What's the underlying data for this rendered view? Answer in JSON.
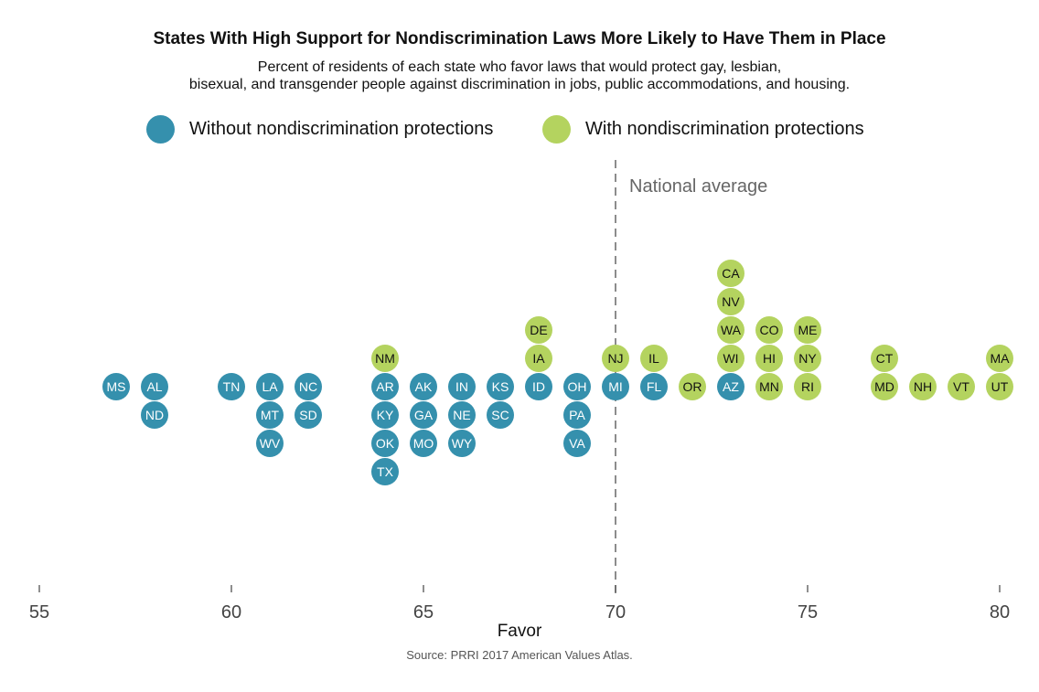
{
  "chart_data": {
    "type": "scatter",
    "title": "States With High Support for Nondiscrimination Laws More Likely to Have Them in Place",
    "subtitle": [
      "Percent of residents of each state who favor laws that would protect gay, lesbian,",
      "bisexual, and transgender people against discrimination in jobs, public accommodations, and housing."
    ],
    "xlabel": "Favor",
    "xlim": [
      55,
      80
    ],
    "xticks": [
      55,
      60,
      65,
      70,
      75,
      80
    ],
    "grid": false,
    "legend_position": "top-center",
    "reference_line": {
      "x": 70,
      "label": "National average"
    },
    "series": [
      {
        "name": "Without nondiscrimination protections",
        "color": "#3590ad",
        "points": [
          {
            "state": "MS",
            "x": 57
          },
          {
            "state": "AL",
            "x": 58
          },
          {
            "state": "ND",
            "x": 58
          },
          {
            "state": "TN",
            "x": 60
          },
          {
            "state": "LA",
            "x": 61
          },
          {
            "state": "MT",
            "x": 61
          },
          {
            "state": "WV",
            "x": 61
          },
          {
            "state": "NC",
            "x": 62
          },
          {
            "state": "SD",
            "x": 62
          },
          {
            "state": "AR",
            "x": 64
          },
          {
            "state": "KY",
            "x": 64
          },
          {
            "state": "OK",
            "x": 64
          },
          {
            "state": "TX",
            "x": 64
          },
          {
            "state": "AK",
            "x": 65
          },
          {
            "state": "GA",
            "x": 65
          },
          {
            "state": "MO",
            "x": 65
          },
          {
            "state": "IN",
            "x": 66
          },
          {
            "state": "NE",
            "x": 66
          },
          {
            "state": "WY",
            "x": 66
          },
          {
            "state": "KS",
            "x": 67
          },
          {
            "state": "SC",
            "x": 67
          },
          {
            "state": "ID",
            "x": 68
          },
          {
            "state": "OH",
            "x": 69
          },
          {
            "state": "PA",
            "x": 69
          },
          {
            "state": "VA",
            "x": 69
          },
          {
            "state": "MI",
            "x": 70
          },
          {
            "state": "FL",
            "x": 71
          },
          {
            "state": "AZ",
            "x": 73
          }
        ]
      },
      {
        "name": "With nondiscrimination protections",
        "color": "#b4d35f",
        "points": [
          {
            "state": "NM",
            "x": 64
          },
          {
            "state": "IA",
            "x": 68
          },
          {
            "state": "DE",
            "x": 68
          },
          {
            "state": "NJ",
            "x": 70
          },
          {
            "state": "IL",
            "x": 71
          },
          {
            "state": "OR",
            "x": 72
          },
          {
            "state": "WI",
            "x": 73
          },
          {
            "state": "WA",
            "x": 73
          },
          {
            "state": "NV",
            "x": 73
          },
          {
            "state": "CA",
            "x": 73
          },
          {
            "state": "MN",
            "x": 74
          },
          {
            "state": "HI",
            "x": 74
          },
          {
            "state": "CO",
            "x": 74
          },
          {
            "state": "RI",
            "x": 75
          },
          {
            "state": "NY",
            "x": 75
          },
          {
            "state": "ME",
            "x": 75
          },
          {
            "state": "MD",
            "x": 77
          },
          {
            "state": "CT",
            "x": 77
          },
          {
            "state": "NH",
            "x": 78
          },
          {
            "state": "VT",
            "x": 79
          },
          {
            "state": "UT",
            "x": 80
          },
          {
            "state": "MA",
            "x": 80
          }
        ]
      }
    ],
    "source": "Source: PRRI 2017 American Values Atlas."
  }
}
